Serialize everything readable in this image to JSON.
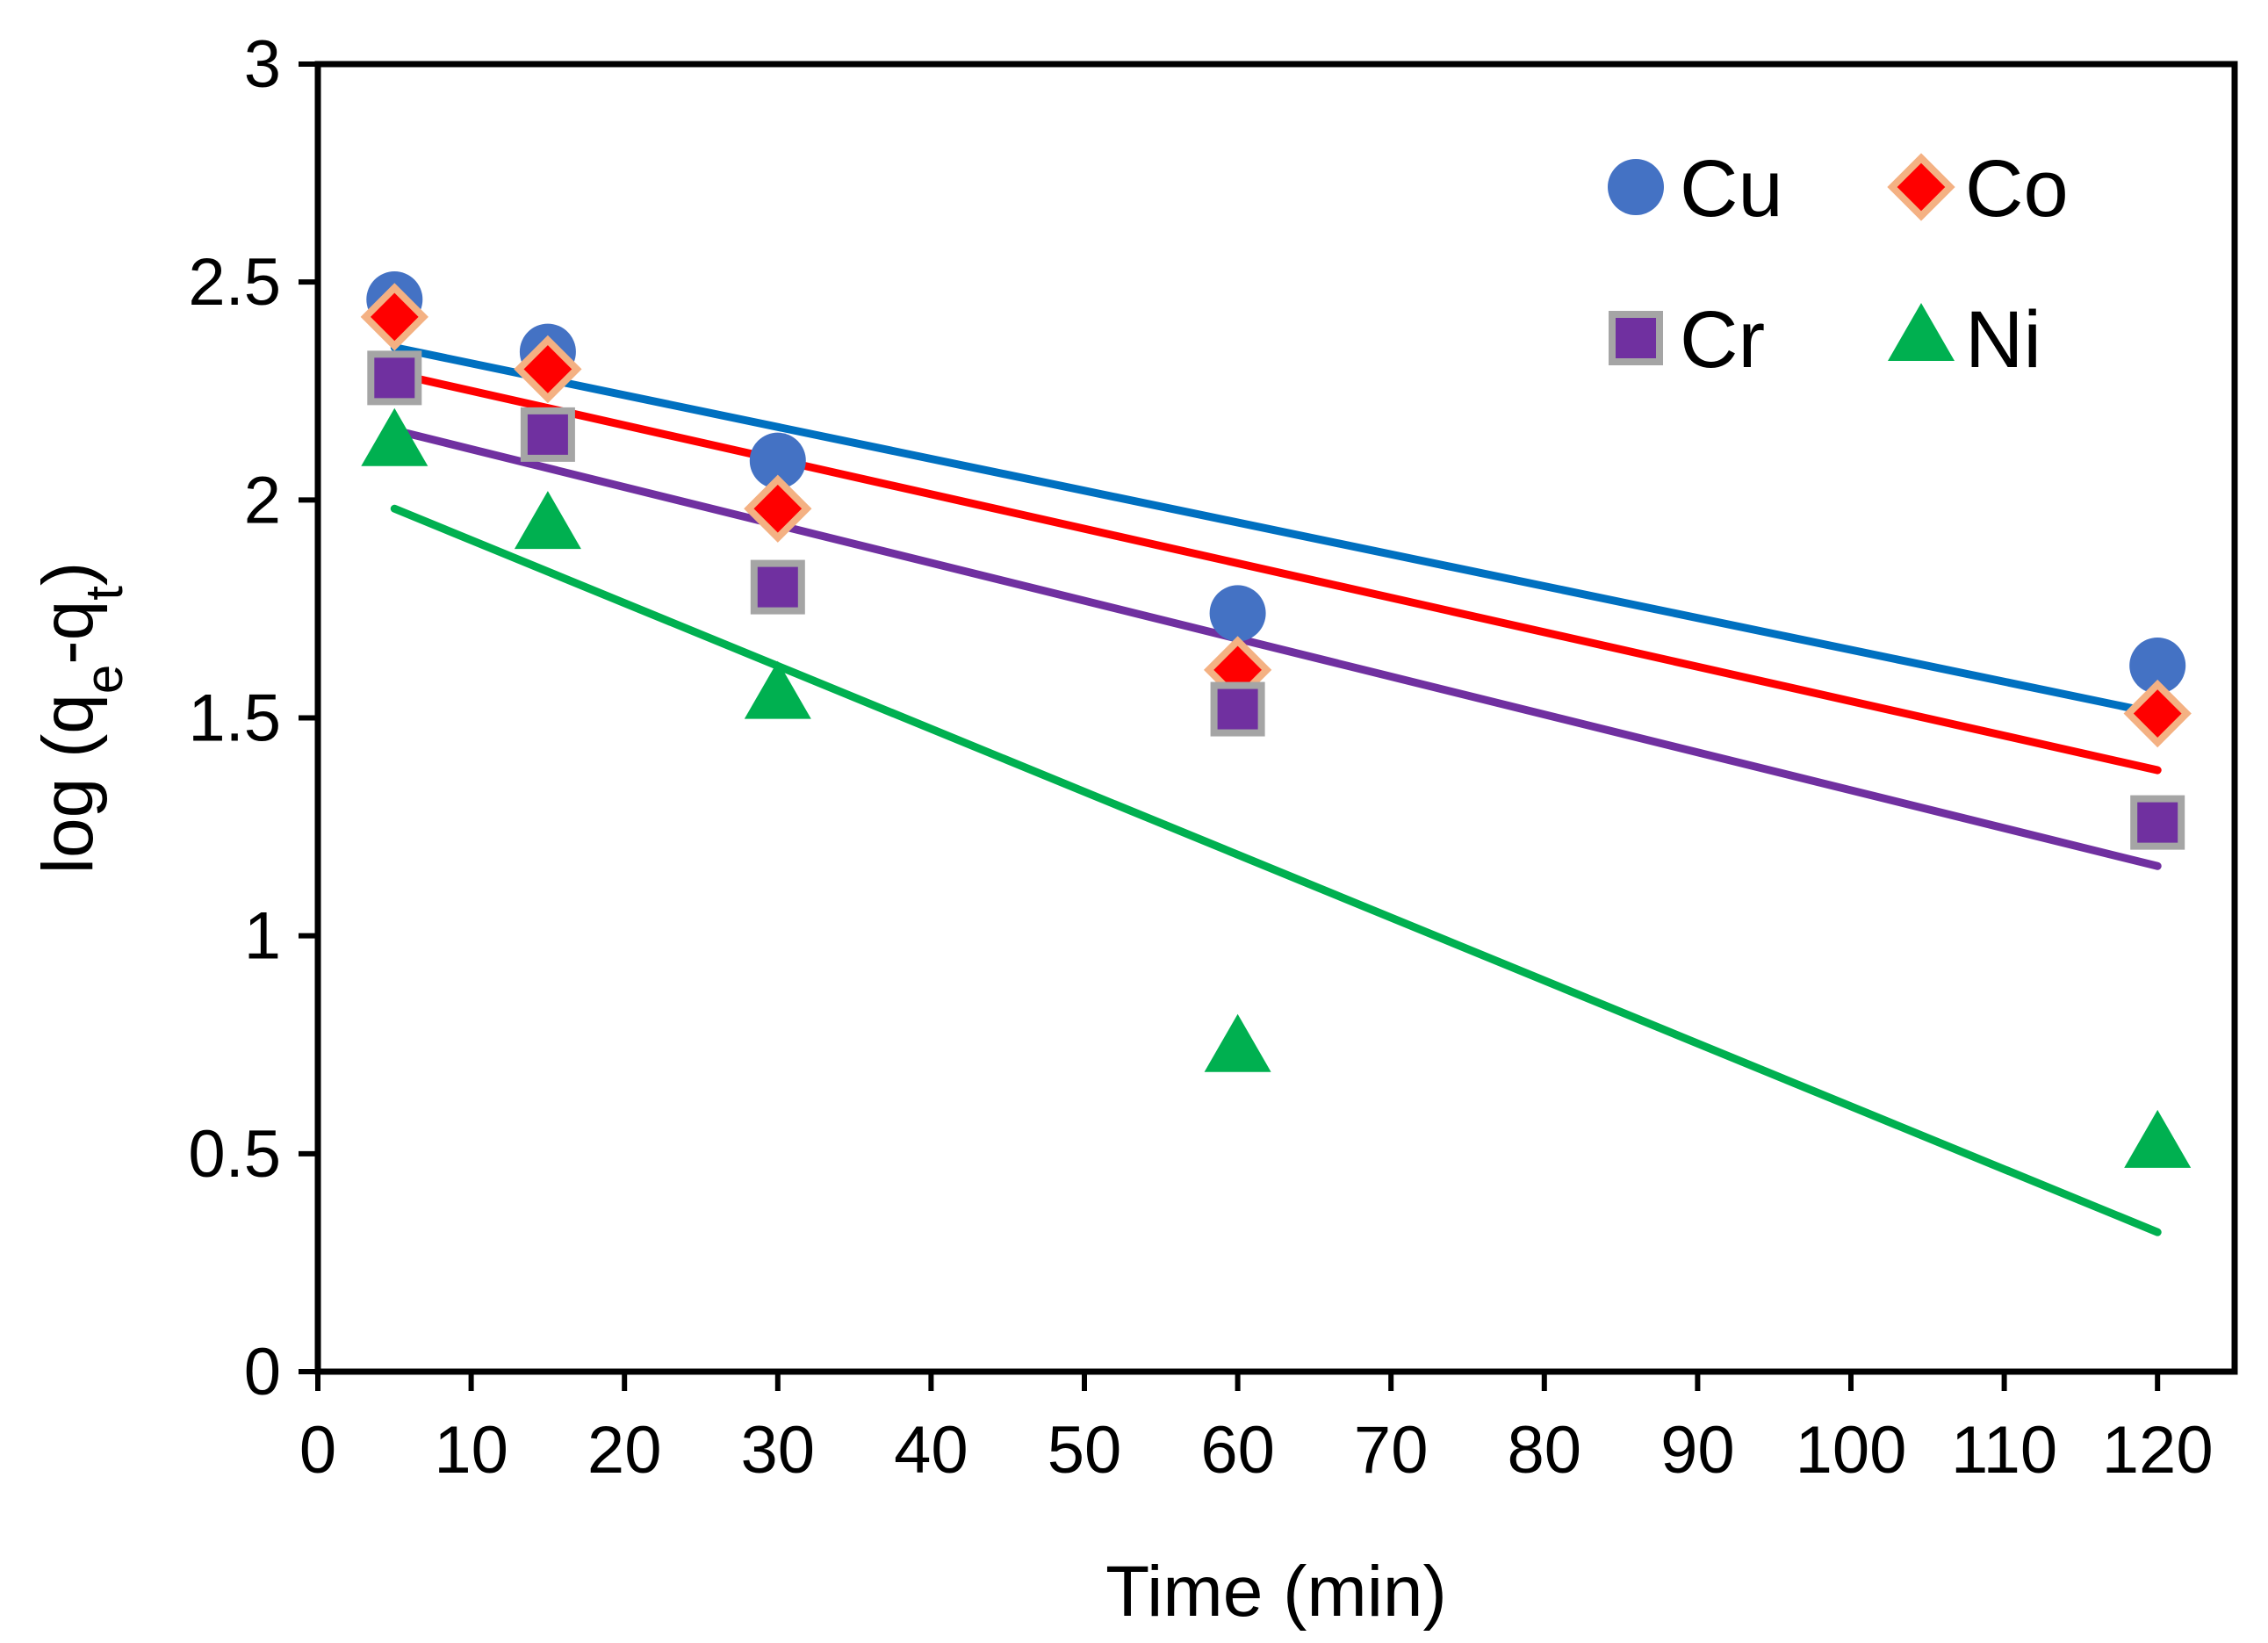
{
  "chart_data": {
    "type": "scatter",
    "title": "",
    "xlabel": "Time (min)",
    "ylabel": {
      "prefix": "log (q",
      "sub1": "e",
      "mid": "-q",
      "sub2": "t",
      "suffix": ")"
    },
    "xlim": [
      0,
      125
    ],
    "ylim": [
      0,
      3
    ],
    "xticks": [
      0,
      10,
      20,
      30,
      40,
      50,
      60,
      70,
      80,
      90,
      100,
      110,
      120
    ],
    "yticks": [
      0,
      0.5,
      1,
      1.5,
      2,
      2.5,
      3
    ],
    "ytick_labels": [
      "0",
      "0.5",
      "1",
      "1.5",
      "2",
      "2.5",
      "3"
    ],
    "grid": false,
    "legend_position": "top-right",
    "x": [
      5,
      15,
      30,
      60,
      120
    ],
    "series": [
      {
        "name": "Cu",
        "marker": "circle",
        "color": "#4472C4",
        "edge": "#4472C4",
        "line_color": "#0070C0",
        "values": [
          2.46,
          2.34,
          2.09,
          1.74,
          1.62
        ],
        "fit": [
          2.35,
          1.51
        ]
      },
      {
        "name": "Co",
        "marker": "diamond",
        "color": "#FF0000",
        "edge": "#F4B183",
        "line_color": "#FF0000",
        "values": [
          2.42,
          2.3,
          1.98,
          1.61,
          1.51
        ],
        "fit": [
          2.29,
          1.38
        ]
      },
      {
        "name": "Cr",
        "marker": "square",
        "color": "#7030A0",
        "edge": "#A5A5A5",
        "line_color": "#7030A0",
        "values": [
          2.28,
          2.15,
          1.8,
          1.52,
          1.26
        ],
        "fit": [
          2.16,
          1.16
        ]
      },
      {
        "name": "Ni",
        "marker": "triangle",
        "color": "#00B050",
        "edge": "#00B050",
        "line_color": "#00B050",
        "values": [
          2.13,
          1.94,
          1.55,
          0.74,
          0.52
        ],
        "fit": [
          1.98,
          0.32
        ]
      }
    ],
    "fit_x": [
      5,
      120
    ]
  }
}
